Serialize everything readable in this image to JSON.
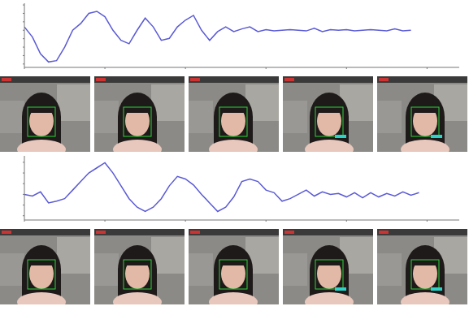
{
  "chart_data": [
    {
      "type": "line",
      "color": "#5a5ad6",
      "tick_labels": false,
      "grid": false,
      "x": [
        0,
        1,
        2,
        3,
        4,
        5,
        6,
        7,
        8,
        9,
        10,
        11,
        12,
        13,
        14,
        15,
        16,
        17,
        18,
        19,
        20,
        21,
        22,
        23,
        24,
        25,
        26,
        27,
        28,
        29,
        30,
        31,
        32,
        33,
        34,
        35,
        36,
        37,
        38,
        39,
        40,
        41,
        42,
        43,
        44,
        45,
        46,
        47,
        48
      ],
      "values": [
        10,
        -20,
        -70,
        -94,
        -90,
        -50,
        0,
        20,
        50,
        56,
        40,
        0,
        -30,
        -40,
        0,
        36,
        10,
        -30,
        -24,
        10,
        30,
        44,
        0,
        -30,
        -4,
        10,
        -4,
        4,
        10,
        -4,
        2,
        -2,
        0,
        2,
        0,
        -2,
        6,
        -4,
        2,
        0,
        2,
        -2,
        0,
        2,
        0,
        -2,
        4,
        -2,
        0
      ],
      "xlim": [
        0,
        54
      ],
      "xticks": [
        0,
        10,
        20,
        30,
        40,
        50
      ],
      "ylim": [
        -110,
        80
      ],
      "yticks": [
        -100,
        -75,
        -50,
        -25,
        0,
        25,
        50,
        75
      ]
    },
    {
      "type": "line",
      "color": "#5a5ad6",
      "tick_labels": false,
      "grid": false,
      "x": [
        0,
        1,
        2,
        3,
        4,
        5,
        6,
        7,
        8,
        9,
        10,
        11,
        12,
        13,
        14,
        15,
        16,
        17,
        18,
        19,
        20,
        21,
        22,
        23,
        24,
        25,
        26,
        27,
        28,
        29,
        30,
        31,
        32,
        33,
        34,
        35,
        36,
        37,
        38,
        39,
        40,
        41,
        42,
        43,
        44,
        45,
        46,
        47,
        48,
        49
      ],
      "values": [
        0,
        -4,
        6,
        -20,
        -16,
        -10,
        10,
        30,
        50,
        62,
        74,
        50,
        20,
        -10,
        -30,
        -40,
        -30,
        -10,
        20,
        42,
        36,
        22,
        0,
        -20,
        -40,
        -30,
        -6,
        30,
        36,
        30,
        10,
        4,
        -16,
        -10,
        0,
        10,
        -4,
        6,
        0,
        2,
        -6,
        4,
        -8,
        4,
        -6,
        2,
        -4,
        6,
        -2,
        4
      ],
      "xlim": [
        0,
        54
      ],
      "xticks": [
        0,
        10,
        20,
        30,
        40,
        50
      ],
      "ylim": [
        -60,
        90
      ],
      "yticks": [
        -50,
        -25,
        0,
        25,
        50,
        75
      ]
    }
  ]
}
